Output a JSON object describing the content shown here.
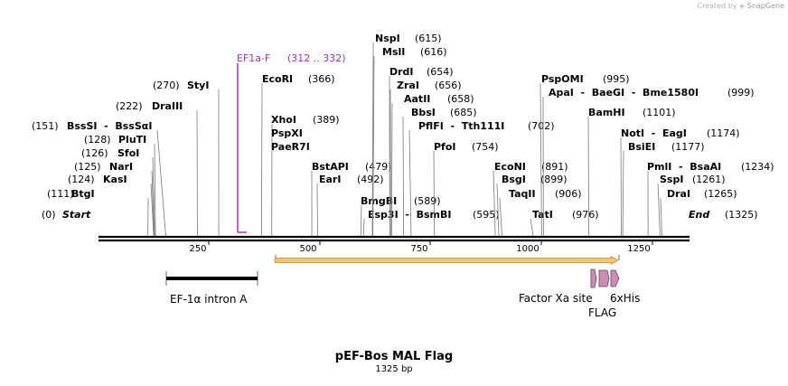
{
  "credit": {
    "prefix": "Created by",
    "brand": "SnapGene"
  },
  "title": "pEF-Bos MAL Flag",
  "length_label": "1325 bp",
  "sequence_length": 1325,
  "colors": {
    "primer": "#9b30c8",
    "feature_arrow": "#f2c27a",
    "feature_arrow_edge": "#c98a1f",
    "tag": "#c98fb0"
  },
  "ticks": [
    {
      "pos": 250,
      "label": "250"
    },
    {
      "pos": 500,
      "label": "500"
    },
    {
      "pos": 750,
      "label": "750"
    },
    {
      "pos": 1000,
      "label": "1000"
    },
    {
      "pos": 1250,
      "label": "1250"
    }
  ],
  "ends": {
    "start": {
      "name": "Start",
      "pos_label": "(0)"
    },
    "end": {
      "name": "End",
      "pos_label": "(1325)"
    }
  },
  "primer": {
    "name": "EF1a-F",
    "range_label": "(312 .. 332)",
    "start": 312,
    "end": 332
  },
  "sites": [
    {
      "pos": 111,
      "text": "BtgI",
      "pos_label": "(111)"
    },
    {
      "pos": 124,
      "text": "KasI",
      "pos_label": "(124)"
    },
    {
      "pos": 125,
      "text": "NarI",
      "pos_label": "(125)"
    },
    {
      "pos": 126,
      "text": "SfoI",
      "pos_label": "(126)"
    },
    {
      "pos": 128,
      "text": "PluTI",
      "pos_label": "(128)"
    },
    {
      "pos": 151,
      "text": "BssSI  -  BssSαI",
      "pos_label": "(151)"
    },
    {
      "pos": 222,
      "text": "DraIII",
      "pos_label": "(222)"
    },
    {
      "pos": 270,
      "text": "StyI",
      "pos_label": "(270)"
    },
    {
      "pos": 366,
      "text": "EcoRI",
      "pos_label": "(366)"
    },
    {
      "pos": 389,
      "text": "XhoI",
      "pos_label": "(389)"
    },
    {
      "pos": 389,
      "text": "PspXI",
      "pos_label": ""
    },
    {
      "pos": 389,
      "text": "PaeR7I",
      "pos_label": ""
    },
    {
      "pos": 479,
      "text": "BstAPI",
      "pos_label": "(479)"
    },
    {
      "pos": 492,
      "text": "EarI",
      "pos_label": "(492)"
    },
    {
      "pos": 589,
      "text": "BmgBI",
      "pos_label": "(589)"
    },
    {
      "pos": 595,
      "text": "Esp3I  -  BsmBI",
      "pos_label": "(595)"
    },
    {
      "pos": 615,
      "text": "NspI",
      "pos_label": "(615)"
    },
    {
      "pos": 616,
      "text": "MslI",
      "pos_label": "(616)"
    },
    {
      "pos": 654,
      "text": "DrdI",
      "pos_label": "(654)"
    },
    {
      "pos": 656,
      "text": "ZraI",
      "pos_label": "(656)"
    },
    {
      "pos": 658,
      "text": "AatII",
      "pos_label": "(658)"
    },
    {
      "pos": 685,
      "text": "BbsI",
      "pos_label": "(685)"
    },
    {
      "pos": 702,
      "text": "PflFI  -  Tth111I",
      "pos_label": "(702)"
    },
    {
      "pos": 754,
      "text": "PfoI",
      "pos_label": "(754)"
    },
    {
      "pos": 891,
      "text": "EcoNI",
      "pos_label": "(891)"
    },
    {
      "pos": 899,
      "text": "BsgI",
      "pos_label": "(899)"
    },
    {
      "pos": 906,
      "text": "TaqII",
      "pos_label": "(906)"
    },
    {
      "pos": 976,
      "text": "TatI",
      "pos_label": "(976)"
    },
    {
      "pos": 995,
      "text": "PspOMI",
      "pos_label": "(995)"
    },
    {
      "pos": 999,
      "text": "ApaI  -  BaeGI  -  Bme1580I",
      "pos_label": "(999)"
    },
    {
      "pos": 1101,
      "text": "BamHI",
      "pos_label": "(1101)"
    },
    {
      "pos": 1174,
      "text": "NotI  -  EagI",
      "pos_label": "(1174)"
    },
    {
      "pos": 1177,
      "text": "BsiEI",
      "pos_label": "(1177)"
    },
    {
      "pos": 1234,
      "text": "PmlI  -  BsaAI",
      "pos_label": "(1234)"
    },
    {
      "pos": 1261,
      "text": "SspI",
      "pos_label": "(1261)"
    },
    {
      "pos": 1265,
      "text": "DraI",
      "pos_label": "(1265)"
    }
  ],
  "features": [
    {
      "name": "EF-1α intron A",
      "kind": "intron"
    },
    {
      "name": "",
      "kind": "cds-arrow"
    },
    {
      "name": "Factor Xa site",
      "kind": "tag"
    },
    {
      "name": "FLAG",
      "kind": "tag"
    },
    {
      "name": "6xHis",
      "kind": "tag"
    }
  ]
}
